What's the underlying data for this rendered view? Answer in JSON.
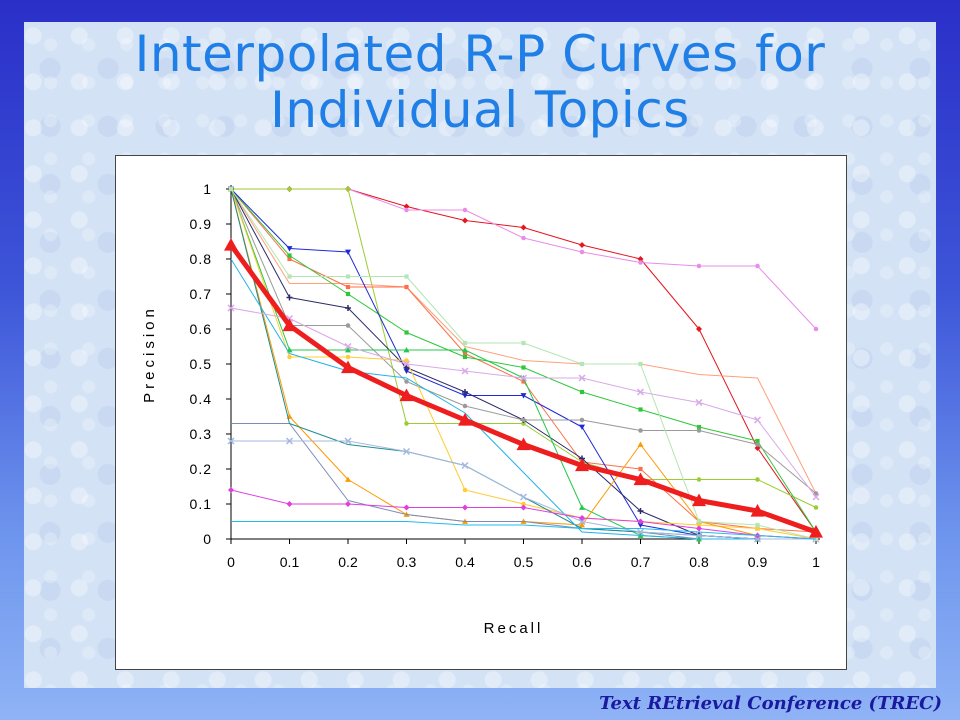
{
  "slide": {
    "title": "Interpolated R-P Curves for\nIndividual Topics",
    "footer": "Text REtrieval Conference (TREC)"
  },
  "chart_data": {
    "type": "line",
    "xlabel": "Recall",
    "ylabel": "Precision",
    "xlim": [
      0,
      1
    ],
    "ylim": [
      0,
      1
    ],
    "x": [
      0,
      0.1,
      0.2,
      0.3,
      0.4,
      0.5,
      0.6,
      0.7,
      0.8,
      0.9,
      1
    ],
    "xticks": [
      "0",
      "0.1",
      "0.2",
      "0.3",
      "0.4",
      "0.5",
      "0.6",
      "0.7",
      "0.8",
      "0.9",
      "1"
    ],
    "yticks": [
      "0",
      "0.1",
      "0.2",
      "0.3",
      "0.4",
      "0.5",
      "0.6",
      "0.7",
      "0.8",
      "0.9",
      "1"
    ],
    "grid": false,
    "legend": "none",
    "series": [
      {
        "color": "#e4161e",
        "marker": "diamond",
        "values": [
          1,
          1,
          1,
          0.95,
          0.91,
          0.89,
          0.84,
          0.8,
          0.6,
          0.26,
          0.02
        ]
      },
      {
        "color": "#e98ce9",
        "marker": "circle",
        "values": [
          1,
          1,
          1,
          0.94,
          0.94,
          0.86,
          0.82,
          0.79,
          0.78,
          0.78,
          0.6
        ]
      },
      {
        "color": "#9acd32",
        "marker": "circle",
        "values": [
          1,
          1,
          1,
          0.33,
          0.33,
          0.33,
          0.22,
          0.17,
          0.17,
          0.17,
          0.09
        ]
      },
      {
        "color": "#ffa07a",
        "marker": "none",
        "values": [
          1,
          0.73,
          0.73,
          0.72,
          0.55,
          0.51,
          0.5,
          0.5,
          0.47,
          0.46,
          0.13
        ]
      },
      {
        "color": "#ff6e4a",
        "marker": "square",
        "values": [
          1,
          0.8,
          0.72,
          0.72,
          0.53,
          0.45,
          0.22,
          0.2,
          0.05,
          0.03,
          0.02
        ]
      },
      {
        "color": "#2ec73a",
        "marker": "square",
        "values": [
          1,
          0.81,
          0.7,
          0.59,
          0.52,
          0.49,
          0.42,
          0.37,
          0.32,
          0.28,
          0.02
        ]
      },
      {
        "color": "#1f2ad6",
        "marker": "triangle-down",
        "values": [
          1,
          0.83,
          0.82,
          0.48,
          0.41,
          0.41,
          0.32,
          0.04,
          0.01,
          0,
          0
        ]
      },
      {
        "color": "#2b2b6b",
        "marker": "plus",
        "values": [
          1,
          0.69,
          0.66,
          0.49,
          0.42,
          0.34,
          0.23,
          0.08,
          0.01,
          0,
          0
        ]
      },
      {
        "color": "#9a9a9a",
        "marker": "circle",
        "values": [
          1,
          0.61,
          0.61,
          0.45,
          0.38,
          0.34,
          0.34,
          0.31,
          0.31,
          0.27,
          0.13
        ]
      },
      {
        "color": "#22c84a",
        "marker": "triangle",
        "values": [
          1,
          0.54,
          0.54,
          0.54,
          0.54,
          0.46,
          0.09,
          0.01,
          0,
          0,
          0
        ]
      },
      {
        "color": "#ffcc33",
        "marker": "circle",
        "values": [
          1,
          0.52,
          0.52,
          0.51,
          0.14,
          0.1,
          0.06,
          0.05,
          0.04,
          0.03,
          0
        ]
      },
      {
        "color": "#ff9900",
        "marker": "triangle",
        "values": [
          1,
          0.35,
          0.17,
          0.07,
          0.05,
          0.05,
          0.04,
          0.27,
          0.05,
          0.01,
          0
        ]
      },
      {
        "color": "#7b8ab8",
        "marker": "none",
        "values": [
          0.33,
          0.33,
          0.11,
          0.07,
          0.05,
          0.05,
          0.03,
          0.02,
          0,
          0,
          0
        ]
      },
      {
        "color": "#1d8e8e",
        "marker": "none",
        "values": [
          1,
          0.33,
          0.27,
          0.25,
          0.21,
          0.12,
          0.03,
          0.02,
          0.01,
          0,
          0
        ]
      },
      {
        "color": "#22b3e8",
        "marker": "none",
        "values": [
          0.8,
          0.53,
          0.48,
          0.46,
          0.36,
          0.19,
          0.02,
          0.01,
          0,
          0,
          0
        ]
      },
      {
        "color": "#a5b8e0",
        "marker": "x",
        "values": [
          0.28,
          0.28,
          0.28,
          0.25,
          0.21,
          0.12,
          0.05,
          0.02,
          0.01,
          0,
          0
        ]
      },
      {
        "color": "#e03fe0",
        "marker": "diamond",
        "values": [
          0.14,
          0.1,
          0.1,
          0.09,
          0.09,
          0.09,
          0.06,
          0.05,
          0.03,
          0.01,
          0
        ]
      },
      {
        "color": "#d8a8e8",
        "marker": "x",
        "values": [
          0.66,
          0.63,
          0.55,
          0.5,
          0.48,
          0.46,
          0.46,
          0.42,
          0.39,
          0.34,
          0.12
        ]
      },
      {
        "color": "#b3e6b3",
        "marker": "square",
        "values": [
          1,
          0.75,
          0.75,
          0.75,
          0.56,
          0.56,
          0.5,
          0.5,
          0.05,
          0.04,
          0
        ]
      },
      {
        "color": "#22bbee",
        "marker": "none",
        "values": [
          0.05,
          0.05,
          0.05,
          0.05,
          0.04,
          0.04,
          0.03,
          0.03,
          0.02,
          0.01,
          0
        ]
      },
      {
        "color": "#ef1e1e",
        "marker": "triangle",
        "width": 5,
        "values": [
          0.84,
          0.61,
          0.49,
          0.41,
          0.34,
          0.27,
          0.21,
          0.17,
          0.11,
          0.08,
          0.02
        ]
      }
    ]
  }
}
